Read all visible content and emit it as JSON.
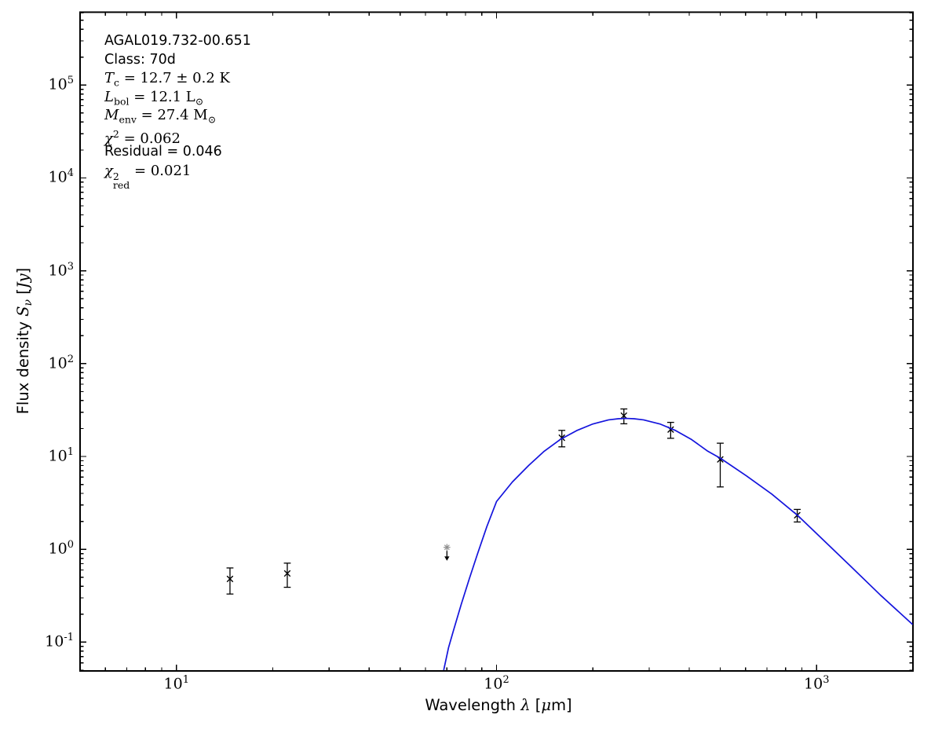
{
  "annotation": {
    "source": "AGAL019.732-00.651",
    "class_line": "Class: 70d",
    "temp": {
      "sym": "T",
      "sub": "c",
      "rest": " = 12.7 ± 0.2 K"
    },
    "lbol": {
      "sym": "L",
      "sub": "bol",
      "mid": " = 12.1 L",
      "sun": "⊙"
    },
    "menv": {
      "sym": "M",
      "sub": "env",
      "mid": " = 27.4 M",
      "sun": "⊙"
    },
    "chi2": {
      "sym": "χ",
      "sup": "2",
      "rest": " = 0.062"
    },
    "residual": "Residual = 0.046",
    "chi2red": {
      "sym": "χ",
      "sup": "2",
      "sub": "red",
      "rest": " = 0.021"
    }
  },
  "axes_text": {
    "xlabel": {
      "prefix": "Wavelength ",
      "symbol": "λ",
      "bracket_open": " [",
      "mu": "μ",
      "unit_close": "m]"
    },
    "ylabel": {
      "prefix": "Flux density ",
      "symbol": "S",
      "symbol_sub": "ν",
      "bracket_open": " [",
      "unit": "Jy",
      "bracket_close": "]"
    }
  },
  "chart_data": {
    "type": "scatter",
    "title": "AGAL019.732-00.651",
    "xlabel": "Wavelength λ [μm]",
    "ylabel": "Flux density Sν [Jy]",
    "xscale": "log",
    "yscale": "log",
    "xlim": [
      5,
      2000
    ],
    "ylim": [
      0.049,
      610000
    ],
    "grid": false,
    "frame_color": "#000000",
    "x_ticks": [
      {
        "value": 10,
        "base": "10",
        "exp": "1"
      },
      {
        "value": 100,
        "base": "10",
        "exp": "2"
      },
      {
        "value": 1000,
        "base": "10",
        "exp": "3"
      }
    ],
    "y_ticks": [
      {
        "value": 0.1,
        "base": "10",
        "exp": "-1"
      },
      {
        "value": 1,
        "base": "10",
        "exp": "0"
      },
      {
        "value": 10,
        "base": "10",
        "exp": "1"
      },
      {
        "value": 100,
        "base": "10",
        "exp": "2"
      },
      {
        "value": 1000,
        "base": "10",
        "exp": "3"
      },
      {
        "value": 10000,
        "base": "10",
        "exp": "4"
      },
      {
        "value": 100000,
        "base": "10",
        "exp": "5"
      }
    ],
    "series": [
      {
        "name": "observed-flux",
        "type": "scatter",
        "marker": "x",
        "color": "#000000",
        "points": [
          {
            "lambda_um": 14.7,
            "flux_jy": 0.48,
            "err_jy": 0.15
          },
          {
            "lambda_um": 22.2,
            "flux_jy": 0.55,
            "err_jy": 0.16
          },
          {
            "lambda_um": 160,
            "flux_jy": 15.9,
            "err_jy": 3.2
          },
          {
            "lambda_um": 250,
            "flux_jy": 27.5,
            "err_jy": 5.0
          },
          {
            "lambda_um": 350,
            "flux_jy": 19.5,
            "err_jy": 3.8
          },
          {
            "lambda_um": 500,
            "flux_jy": 9.3,
            "err_jy": 4.6
          },
          {
            "lambda_um": 870,
            "flux_jy": 2.33,
            "err_jy": 0.36
          }
        ]
      },
      {
        "name": "upper-limit",
        "type": "upper-limit",
        "marker": "star",
        "color": "#8f8f8f",
        "arrow_color": "#000000",
        "points": [
          {
            "lambda_um": 70,
            "flux_jy": 1.05
          }
        ]
      },
      {
        "name": "greybody-model",
        "type": "line",
        "color": "#1414dd",
        "points": [
          [
            68.4,
            0.05
          ],
          [
            70.8,
            0.087
          ],
          [
            73.3,
            0.132
          ],
          [
            77.6,
            0.256
          ],
          [
            82.2,
            0.48
          ],
          [
            87.1,
            0.88
          ],
          [
            93.3,
            1.76
          ],
          [
            100,
            3.27
          ],
          [
            112,
            5.3
          ],
          [
            126,
            8.0
          ],
          [
            141,
            11.4
          ],
          [
            158,
            15.2
          ],
          [
            178,
            19.0
          ],
          [
            200,
            22.4
          ],
          [
            224,
            24.8
          ],
          [
            240,
            25.5
          ],
          [
            254,
            25.7
          ],
          [
            269,
            25.5
          ],
          [
            288,
            24.8
          ],
          [
            324,
            22.4
          ],
          [
            363,
            19.0
          ],
          [
            407,
            15.2
          ],
          [
            457,
            11.4
          ],
          [
            501,
            9.55
          ],
          [
            603,
            6.2
          ],
          [
            724,
            3.94
          ],
          [
            871,
            2.33
          ],
          [
            1000,
            1.48
          ],
          [
            1259,
            0.69
          ],
          [
            1585,
            0.32
          ],
          [
            1995,
            0.155
          ]
        ]
      }
    ]
  }
}
